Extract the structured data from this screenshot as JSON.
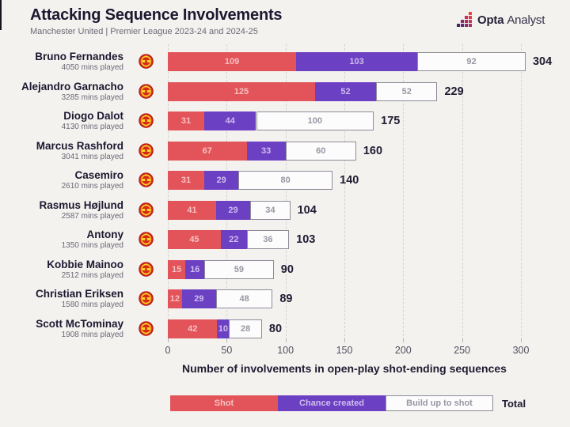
{
  "header": {
    "title": "Attacking Sequence Involvements",
    "subtitle": "Manchester United | Premier League 2023-24 and 2024-25",
    "brand_bold": "Opta",
    "brand_light": "Analyst"
  },
  "chart_data": {
    "type": "bar",
    "orientation": "horizontal",
    "stacked": true,
    "title": "Attacking Sequence Involvements",
    "subtitle": "Manchester United | Premier League 2023-24 and 2024-25",
    "xlabel": "Number of involvements in open-play shot-ending sequences",
    "xlim": [
      0,
      300
    ],
    "xticks": [
      0,
      50,
      100,
      150,
      200,
      250,
      300
    ],
    "grid": "vertical-dashed",
    "legend_position": "bottom",
    "club_icon": "manchester-united-crest-icon",
    "series": [
      {
        "name": "Shot",
        "color": "#e2545a",
        "label_color": "#f6c0c2",
        "border": null
      },
      {
        "name": "Chance created",
        "color": "#6c40c2",
        "label_color": "#cfbcf0",
        "border": null
      },
      {
        "name": "Build up to shot",
        "color": "#fcfcfd",
        "label_color": "#9a96a2",
        "border": "#8e8b97"
      }
    ],
    "rows": [
      {
        "player": "Bruno Fernandes",
        "mins_played": "4050 mins played",
        "values": [
          109,
          103,
          92
        ],
        "total": 304
      },
      {
        "player": "Alejandro Garnacho",
        "mins_played": "3285 mins played",
        "values": [
          125,
          52,
          52
        ],
        "total": 229
      },
      {
        "player": "Diogo Dalot",
        "mins_played": "4130 mins played",
        "values": [
          31,
          44,
          100
        ],
        "total": 175
      },
      {
        "player": "Marcus Rashford",
        "mins_played": "3041 mins played",
        "values": [
          67,
          33,
          60
        ],
        "total": 160
      },
      {
        "player": "Casemiro",
        "mins_played": "2610 mins played",
        "values": [
          31,
          29,
          80
        ],
        "total": 140
      },
      {
        "player": "Rasmus Højlund",
        "mins_played": "2587 mins played",
        "values": [
          41,
          29,
          34
        ],
        "total": 104
      },
      {
        "player": "Antony",
        "mins_played": "1350 mins played",
        "values": [
          45,
          22,
          36
        ],
        "total": 103
      },
      {
        "player": "Kobbie Mainoo",
        "mins_played": "2512 mins played",
        "values": [
          15,
          16,
          59
        ],
        "total": 90
      },
      {
        "player": "Christian Eriksen",
        "mins_played": "1580 mins played",
        "values": [
          12,
          29,
          48
        ],
        "total": 89
      },
      {
        "player": "Scott McTominay",
        "mins_played": "1908 mins played",
        "values": [
          42,
          10,
          28
        ],
        "total": 80
      }
    ],
    "total_label": "Total"
  },
  "colors": {
    "background": "#f3f2ef",
    "title_text": "#1d1830",
    "muted_text": "#6c6876",
    "shot_red": "#e2545a",
    "chance_purple": "#6c40c2",
    "buildup_white": "#fcfcfd",
    "gridline": "#d4d2ce",
    "crest_red": "#d7281c",
    "crest_yellow": "#fcd920",
    "logo_gradient_start": "#45295e",
    "logo_gradient_end": "#ec4440"
  }
}
